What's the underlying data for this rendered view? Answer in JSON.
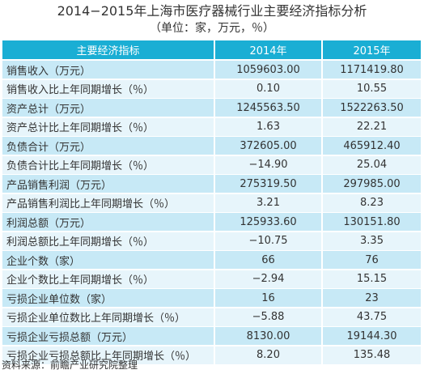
{
  "title": "2014−2015年上海市医疗器械行业主要经济指标分析",
  "subtitle": "（单位：家，万元，％）",
  "table": {
    "headers": [
      "主要经济指标",
      "2014年",
      "2015年"
    ],
    "rows": [
      [
        "销售收入（万元）",
        "1059603.00",
        "1171419.80"
      ],
      [
        "销售收入比上年同期增长（％）",
        "0.10",
        "10.55"
      ],
      [
        "资产总计（万元）",
        "1245563.50",
        "1522263.50"
      ],
      [
        "资产总计比上年同期增长（％）",
        "1.63",
        "22.21"
      ],
      [
        "负债合计（万元）",
        "372605.00",
        "465912.40"
      ],
      [
        "负债合计比上年同期增长（％）",
        "−14.90",
        "25.04"
      ],
      [
        "产品销售利润（万元）",
        "275319.50",
        "297985.00"
      ],
      [
        "产品销售利润比上年同期增长（％）",
        "3.21",
        "8.23"
      ],
      [
        "利润总额（万元）",
        "125933.60",
        "130151.80"
      ],
      [
        "利润总额比上年同期增长（％）",
        "−10.75",
        "3.35"
      ],
      [
        "企业个数（家）",
        "66",
        "76"
      ],
      [
        "企业个数比上年同期增长（％）",
        "−2.94",
        "15.15"
      ],
      [
        "亏损企业单位数（家）",
        "16",
        "23"
      ],
      [
        "亏损企业单位数比上年同期增长（％）",
        "−5.88",
        "43.75"
      ],
      [
        "亏损企业亏损总额（万元）",
        "8130.00",
        "19144.30"
      ],
      [
        "亏损企业亏损总额比上年同期增长（％）",
        "8.20",
        "135.48"
      ]
    ]
  },
  "source": "资料来源：前瞻产业研究院整理",
  "colors": {
    "header_bg": "#1aaed4",
    "row_dark": "#c7e9f6",
    "row_light": "#e7f5fb"
  }
}
